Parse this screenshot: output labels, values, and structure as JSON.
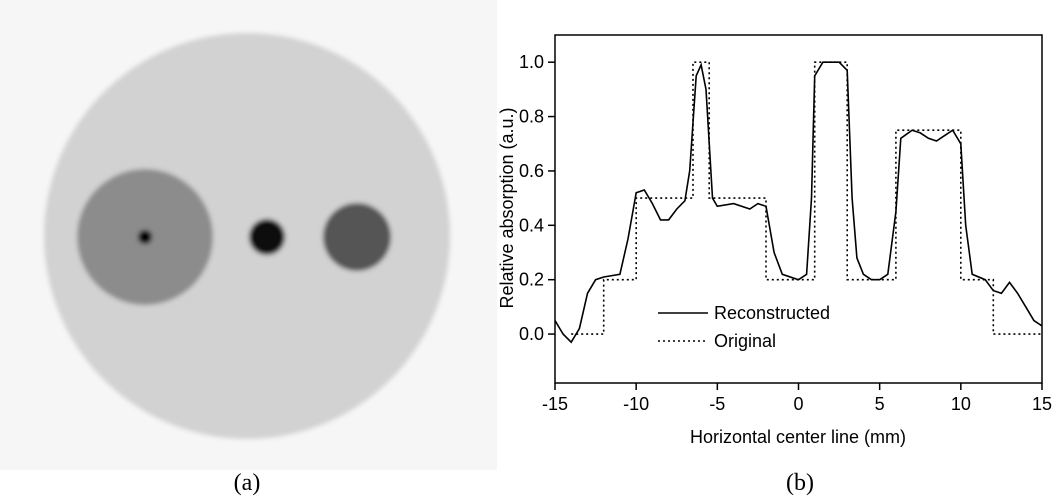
{
  "panel_a": {
    "caption": "(a)"
  },
  "chart_data": {
    "type": "line",
    "caption": "(b)",
    "x_label": "Horizontal center line (mm)",
    "y_label": "Relative absorption (a.u.)",
    "xlim": [
      -15,
      15
    ],
    "xticks": [
      -15,
      -10,
      -5,
      0,
      5,
      10,
      15
    ],
    "ylim": [
      -0.18,
      1.1
    ],
    "yticks": [
      {
        "value": 0,
        "label": "0.0"
      },
      0.2,
      0.4,
      0.6,
      0.8,
      {
        "value": 1,
        "label": "1.0"
      }
    ],
    "legend": "lower left",
    "series": [
      {
        "name": "Reconstructed",
        "color": "#000000",
        "dash": "solid",
        "x": [
          -15,
          -14.5,
          -14,
          -13.5,
          -13,
          -12.5,
          -12,
          -11,
          -10.5,
          -10,
          -9.5,
          -9,
          -8.5,
          -8,
          -7.5,
          -7,
          -6.7,
          -6.3,
          -6,
          -5.7,
          -5.3,
          -5,
          -4,
          -3,
          -2.5,
          -2,
          -1.5,
          -1,
          0,
          0.5,
          0.8,
          1,
          1.5,
          2,
          2.5,
          3,
          3.3,
          3.6,
          4,
          4.5,
          5,
          5.5,
          6,
          6.3,
          7,
          7.5,
          8,
          8.5,
          9,
          9.5,
          10,
          10.3,
          10.7,
          11.5,
          12,
          12.5,
          13,
          13.5,
          14,
          14.5,
          15
        ],
        "values": [
          0.05,
          0.0,
          -0.03,
          0.02,
          0.15,
          0.2,
          0.21,
          0.22,
          0.35,
          0.52,
          0.53,
          0.48,
          0.42,
          0.42,
          0.46,
          0.49,
          0.6,
          0.95,
          0.99,
          0.9,
          0.5,
          0.47,
          0.48,
          0.46,
          0.48,
          0.47,
          0.3,
          0.22,
          0.2,
          0.22,
          0.5,
          0.95,
          1.0,
          1.0,
          1.0,
          0.97,
          0.5,
          0.28,
          0.22,
          0.2,
          0.2,
          0.22,
          0.45,
          0.72,
          0.75,
          0.74,
          0.72,
          0.71,
          0.73,
          0.75,
          0.7,
          0.4,
          0.22,
          0.2,
          0.16,
          0.15,
          0.19,
          0.15,
          0.1,
          0.05,
          0.03
        ]
      },
      {
        "name": "Original",
        "color": "#000000",
        "dash": "dotted",
        "x": [
          -14,
          -12,
          -12,
          -10,
          -10,
          -6.5,
          -6.5,
          -5.5,
          -5.5,
          -2,
          -2,
          1,
          1,
          3,
          3,
          6,
          6,
          10,
          10,
          12,
          12,
          15
        ],
        "values": [
          0,
          0,
          0.2,
          0.2,
          0.5,
          0.5,
          1,
          1,
          0.5,
          0.5,
          0.2,
          0.2,
          1,
          1,
          0.2,
          0.2,
          0.75,
          0.75,
          0.2,
          0.2,
          0,
          0
        ]
      }
    ]
  }
}
